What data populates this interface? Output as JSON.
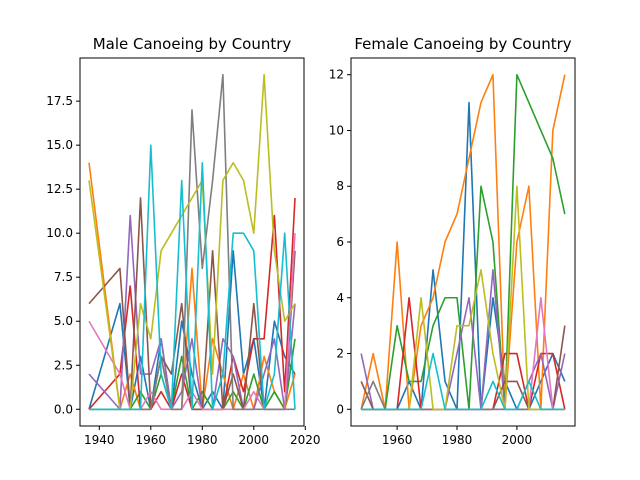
{
  "chart_data": [
    {
      "type": "line",
      "title": "Male Canoeing by Country",
      "xlabel": "",
      "ylabel": "",
      "xlim": [
        1932.5,
        2019.5
      ],
      "ylim": [
        -0.95,
        19.95
      ],
      "xticks": [
        1940,
        1960,
        1980,
        2000,
        2020
      ],
      "xtick_labels": [
        "1940",
        "1960",
        "1980",
        "2000",
        "2020"
      ],
      "yticks": [
        0,
        2.5,
        5,
        7.5,
        10,
        12.5,
        15,
        17.5
      ],
      "ytick_labels": [
        "0.0",
        "2.5",
        "5.0",
        "7.5",
        "10.0",
        "12.5",
        "15.0",
        "17.5"
      ],
      "grid": false,
      "series": [
        {
          "color": "#1f77b4",
          "x": [
            1936,
            1948,
            1952,
            1956,
            1960,
            1964,
            1968,
            1972,
            1976,
            1980,
            1984,
            1988,
            1992,
            1996,
            2000,
            2004,
            2008,
            2012,
            2016
          ],
          "y": [
            0,
            6,
            0,
            3,
            0,
            4,
            0,
            5,
            2,
            0,
            1,
            0,
            9,
            2,
            4,
            0,
            5,
            3,
            2
          ]
        },
        {
          "color": "#ff7f0e",
          "x": [
            1936,
            1948,
            1952,
            1956,
            1960,
            1964,
            1968,
            1972,
            1976,
            1980,
            1984,
            1988,
            1992,
            1996,
            2000,
            2004,
            2008,
            2012,
            2016
          ],
          "y": [
            14,
            0,
            2,
            0,
            0,
            3,
            0,
            0,
            8,
            0,
            4,
            2,
            0,
            2,
            0,
            3,
            1,
            0,
            2
          ]
        },
        {
          "color": "#2ca02c",
          "x": [
            1936,
            1948,
            1952,
            1956,
            1960,
            1964,
            1968,
            1972,
            1976,
            1980,
            1984,
            1988,
            1992,
            1996,
            2000,
            2004,
            2008,
            2012,
            2016
          ],
          "y": [
            0,
            0,
            0,
            1,
            0,
            2,
            0,
            3,
            0,
            1,
            0,
            0,
            1,
            0,
            2,
            0,
            1,
            0,
            4
          ]
        },
        {
          "color": "#d62728",
          "x": [
            1936,
            1948,
            1952,
            1956,
            1960,
            1964,
            1968,
            1972,
            1976,
            1980,
            1984,
            1988,
            1992,
            1996,
            2000,
            2004,
            2008,
            2012,
            2016
          ],
          "y": [
            0,
            2,
            7,
            0,
            0,
            1,
            0,
            2,
            0,
            0,
            0,
            0,
            3,
            1,
            4,
            4,
            11,
            1,
            12
          ]
        },
        {
          "color": "#9467bd",
          "x": [
            1936,
            1948,
            1952,
            1956,
            1960,
            1964,
            1968,
            1972,
            1976,
            1980,
            1984,
            1988,
            1992,
            1996,
            2000,
            2004,
            2008,
            2012,
            2016
          ],
          "y": [
            2,
            0,
            11,
            2,
            2,
            4,
            0,
            1,
            4,
            0,
            0,
            4,
            3,
            0,
            0,
            2,
            4,
            0,
            6
          ]
        },
        {
          "color": "#8c564b",
          "x": [
            1936,
            1948,
            1952,
            1956,
            1960,
            1964,
            1968,
            1972,
            1976,
            1980,
            1984,
            1988,
            1992,
            1996,
            2000,
            2004,
            2008,
            2012,
            2016
          ],
          "y": [
            6,
            8,
            0,
            12,
            0,
            3,
            2,
            6,
            0,
            0,
            9,
            0,
            2,
            0,
            6,
            0,
            0,
            0,
            9
          ]
        },
        {
          "color": "#e377c2",
          "x": [
            1936,
            1948,
            1952,
            1956,
            1960,
            1964,
            1968,
            1972,
            1976,
            1980,
            1984,
            1988,
            1992,
            1996,
            2000,
            2004,
            2008,
            2012,
            2016
          ],
          "y": [
            5,
            2,
            0,
            0,
            1,
            0,
            0,
            0,
            1,
            0,
            0,
            0,
            0,
            0,
            1,
            0,
            0,
            0,
            10
          ]
        },
        {
          "color": "#7f7f7f",
          "x": [
            1936,
            1948,
            1952,
            1956,
            1960,
            1964,
            1968,
            1972,
            1976,
            1980,
            1984,
            1988,
            1992,
            1996,
            2000,
            2004,
            2008,
            2012,
            2016
          ],
          "y": [
            0,
            0,
            0,
            0,
            0,
            3,
            0,
            0,
            17,
            8,
            13,
            19,
            0,
            0,
            0,
            0,
            0,
            0,
            0
          ]
        },
        {
          "color": "#bcbd22",
          "x": [
            1936,
            1948,
            1952,
            1956,
            1960,
            1964,
            1968,
            1972,
            1976,
            1980,
            1984,
            1988,
            1992,
            1996,
            2000,
            2004,
            2008,
            2012,
            2016
          ],
          "y": [
            13,
            0,
            0,
            6,
            4,
            9,
            10,
            11,
            12,
            13,
            2,
            13,
            14,
            13,
            10,
            19,
            9,
            5,
            6
          ]
        },
        {
          "color": "#17becf",
          "x": [
            1936,
            1948,
            1952,
            1956,
            1960,
            1964,
            1968,
            1972,
            1976,
            1980,
            1984,
            1988,
            1992,
            1996,
            2000,
            2004,
            2008,
            2012,
            2016
          ],
          "y": [
            0,
            0,
            0,
            0,
            15,
            2,
            0,
            13,
            0,
            14,
            0,
            2,
            10,
            10,
            9,
            0,
            2,
            10,
            0
          ]
        }
      ]
    },
    {
      "type": "line",
      "title": "Female Canoeing by Country",
      "xlabel": "",
      "ylabel": "",
      "xlim": [
        1944.6,
        2019.4
      ],
      "ylim": [
        -0.6,
        12.6
      ],
      "xticks": [
        1960,
        1980,
        2000
      ],
      "xtick_labels": [
        "1960",
        "1980",
        "2000"
      ],
      "yticks": [
        0,
        2,
        4,
        6,
        8,
        10,
        12
      ],
      "ytick_labels": [
        "0",
        "2",
        "4",
        "6",
        "8",
        "10",
        "12"
      ],
      "grid": false,
      "series": [
        {
          "color": "#1f77b4",
          "x": [
            1948,
            1952,
            1956,
            1960,
            1964,
            1968,
            1972,
            1976,
            1980,
            1984,
            1988,
            1992,
            1996,
            2000,
            2004,
            2008,
            2012,
            2016
          ],
          "y": [
            0,
            0,
            0,
            0,
            1,
            0,
            5,
            1,
            0,
            11,
            0,
            4,
            1,
            0,
            0,
            1,
            2,
            1
          ]
        },
        {
          "color": "#ff7f0e",
          "x": [
            1948,
            1952,
            1956,
            1960,
            1964,
            1968,
            1972,
            1976,
            1980,
            1984,
            1988,
            1992,
            1996,
            2000,
            2004,
            2008,
            2012,
            2016
          ],
          "y": [
            0,
            2,
            0,
            6,
            0,
            3,
            4,
            6,
            7,
            9,
            11,
            12,
            0,
            6,
            8,
            0,
            10,
            12
          ]
        },
        {
          "color": "#2ca02c",
          "x": [
            1948,
            1952,
            1956,
            1960,
            1964,
            1968,
            1972,
            1976,
            1980,
            1984,
            1988,
            1992,
            1996,
            2000,
            2004,
            2008,
            2012,
            2016
          ],
          "y": [
            0,
            0,
            0,
            3,
            1,
            1,
            3,
            4,
            4,
            0,
            8,
            6,
            0,
            12,
            11,
            10,
            9,
            7
          ]
        },
        {
          "color": "#d62728",
          "x": [
            1948,
            1952,
            1956,
            1960,
            1964,
            1968,
            1972,
            1976,
            1980,
            1984,
            1988,
            1992,
            1996,
            2000,
            2004,
            2008,
            2012,
            2016
          ],
          "y": [
            0,
            0,
            0,
            0,
            4,
            0,
            0,
            0,
            0,
            0,
            0,
            0,
            2,
            2,
            0,
            2,
            2,
            0
          ]
        },
        {
          "color": "#9467bd",
          "x": [
            1948,
            1952,
            1956,
            1960,
            1964,
            1968,
            1972,
            1976,
            1980,
            1984,
            1988,
            1992,
            1996,
            2000,
            2004,
            2008,
            2012,
            2016
          ],
          "y": [
            2,
            0,
            0,
            0,
            0,
            0,
            0,
            0,
            2,
            4,
            0,
            5,
            0,
            0,
            1,
            2,
            0,
            2
          ]
        },
        {
          "color": "#8c564b",
          "x": [
            1948,
            1952,
            1956,
            1960,
            1964,
            1968,
            1972,
            1976,
            1980,
            1984,
            1988,
            1992,
            1996,
            2000,
            2004,
            2008,
            2012,
            2016
          ],
          "y": [
            1,
            0,
            0,
            0,
            0,
            0,
            0,
            0,
            0,
            0,
            0,
            0,
            1,
            1,
            0,
            0,
            0,
            3
          ]
        },
        {
          "color": "#e377c2",
          "x": [
            1948,
            1952,
            1956,
            1960,
            1964,
            1968,
            1972,
            1976,
            1980,
            1984,
            1988,
            1992,
            1996,
            2000,
            2004,
            2008,
            2012,
            2016
          ],
          "y": [
            0,
            0,
            0,
            0,
            0,
            0,
            0,
            0,
            0,
            0,
            0,
            0,
            0,
            0,
            0,
            4,
            0,
            0
          ]
        },
        {
          "color": "#7f7f7f",
          "x": [
            1948,
            1952,
            1956,
            1960,
            1964,
            1968,
            1972,
            1976,
            1980,
            1984,
            1988,
            1992,
            1996,
            2000,
            2004,
            2008,
            2012,
            2016
          ],
          "y": [
            0,
            1,
            0,
            0,
            0,
            0,
            0,
            0,
            0,
            0,
            0,
            0,
            0,
            0,
            0,
            0,
            0,
            0
          ]
        },
        {
          "color": "#bcbd22",
          "x": [
            1948,
            1952,
            1956,
            1960,
            1964,
            1968,
            1972,
            1976,
            1980,
            1984,
            1988,
            1992,
            1996,
            2000,
            2004,
            2008,
            2012,
            2016
          ],
          "y": [
            0,
            0,
            0,
            0,
            0,
            4,
            0,
            0,
            3,
            3,
            5,
            2,
            0,
            8,
            0,
            0,
            0,
            0
          ]
        },
        {
          "color": "#17becf",
          "x": [
            1948,
            1952,
            1956,
            1960,
            1964,
            1968,
            1972,
            1976,
            1980,
            1984,
            1988,
            1992,
            1996,
            2000,
            2004,
            2008,
            2012,
            2016
          ],
          "y": [
            0,
            0,
            0,
            0,
            0,
            0,
            2,
            0,
            0,
            0,
            0,
            1,
            0,
            0,
            1,
            0,
            0,
            0
          ]
        }
      ]
    }
  ]
}
